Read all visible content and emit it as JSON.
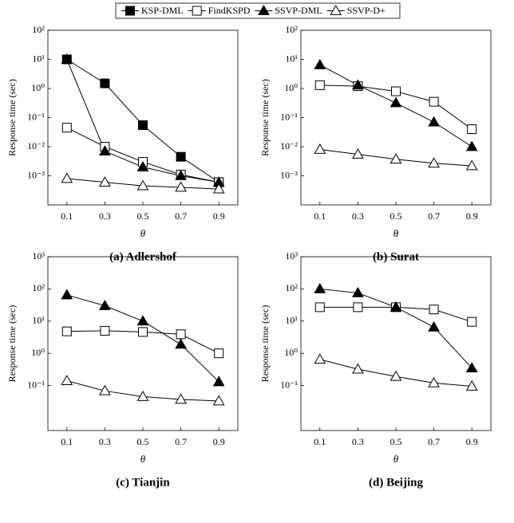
{
  "chart_data": [
    {
      "type": "line",
      "title": "(a) Adlershof",
      "xlabel": "θ",
      "ylabel": "Response time (sec)",
      "log_y": true,
      "x": [
        0.1,
        0.3,
        0.5,
        0.7,
        0.9
      ],
      "xlim": [
        0,
        1
      ],
      "xticks": [
        0.1,
        0.3,
        0.5,
        0.7,
        0.9
      ],
      "ylim": [
        0.0001,
        100
      ],
      "yticks": [
        {
          "value": 0.001,
          "label": "10⁻³"
        },
        {
          "value": 0.01,
          "label": "10⁻²"
        },
        {
          "value": 0.1,
          "label": "10⁻¹"
        },
        {
          "value": 1,
          "label": "10⁰"
        },
        {
          "value": 10,
          "label": "10¹"
        },
        {
          "value": 100,
          "label": "10²"
        }
      ],
      "series": [
        {
          "name": "KSP-DML",
          "color": "#000000",
          "marker": "square-filled",
          "values": [
            10,
            1.5,
            0.055,
            0.0045,
            0.0006
          ]
        },
        {
          "name": "FindKSPD",
          "color": "#000000",
          "marker": "square-open",
          "values": [
            0.045,
            0.01,
            0.003,
            0.0011,
            0.0006
          ]
        },
        {
          "name": "SSVP-DML",
          "color": "#000000",
          "marker": "triangle-filled",
          "values": [
            10,
            0.007,
            0.002,
            0.001,
            0.0006
          ]
        },
        {
          "name": "SSVP-D+",
          "color": "#000000",
          "marker": "triangle-open",
          "values": [
            0.0008,
            0.0006,
            0.00045,
            0.0004,
            0.00035
          ]
        }
      ]
    },
    {
      "type": "line",
      "title": "(b) Surat",
      "xlabel": "θ",
      "ylabel": "Response time (sec)",
      "log_y": true,
      "x": [
        0.1,
        0.3,
        0.5,
        0.7,
        0.9
      ],
      "xlim": [
        0,
        1
      ],
      "xticks": [
        0.1,
        0.3,
        0.5,
        0.7,
        0.9
      ],
      "ylim": [
        0.0001,
        100
      ],
      "yticks": [
        {
          "value": 0.001,
          "label": "10⁻³"
        },
        {
          "value": 0.01,
          "label": "10⁻²"
        },
        {
          "value": 0.1,
          "label": "10⁻¹"
        },
        {
          "value": 1,
          "label": "10⁰"
        },
        {
          "value": 10,
          "label": "10¹"
        },
        {
          "value": 100,
          "label": "10²"
        }
      ],
      "series": [
        {
          "name": "FindKSPD",
          "color": "#000000",
          "marker": "square-open",
          "values": [
            1.3,
            1.2,
            0.8,
            0.35,
            0.04
          ]
        },
        {
          "name": "SSVP-DML",
          "color": "#000000",
          "marker": "triangle-filled",
          "values": [
            6.5,
            1.3,
            0.32,
            0.07,
            0.01
          ]
        },
        {
          "name": "SSVP-D+",
          "color": "#000000",
          "marker": "triangle-open",
          "values": [
            0.008,
            0.0055,
            0.0037,
            0.0027,
            0.0022
          ]
        }
      ]
    },
    {
      "type": "line",
      "title": "(c) Tianjin",
      "xlabel": "θ",
      "ylabel": "Response time (sec)",
      "log_y": true,
      "x": [
        0.1,
        0.3,
        0.5,
        0.7,
        0.9
      ],
      "xlim": [
        0,
        1
      ],
      "xticks": [
        0.1,
        0.3,
        0.5,
        0.7,
        0.9
      ],
      "ylim": [
        0.004,
        1000
      ],
      "yticks": [
        {
          "value": 0.1,
          "label": "10⁻¹"
        },
        {
          "value": 1,
          "label": "10⁰"
        },
        {
          "value": 10,
          "label": "10¹"
        },
        {
          "value": 100,
          "label": "10²"
        },
        {
          "value": 1000,
          "label": "10³"
        }
      ],
      "series": [
        {
          "name": "FindKSPD",
          "color": "#000000",
          "marker": "square-open",
          "values": [
            4.8,
            5,
            4.6,
            3.9,
            1.0
          ]
        },
        {
          "name": "SSVP-DML",
          "color": "#000000",
          "marker": "triangle-filled",
          "values": [
            65,
            30,
            10,
            1.9,
            0.13
          ]
        },
        {
          "name": "SSVP-D+",
          "color": "#000000",
          "marker": "triangle-open",
          "values": [
            0.14,
            0.068,
            0.045,
            0.037,
            0.033
          ]
        }
      ]
    },
    {
      "type": "line",
      "title": "(d) Beijing",
      "xlabel": "θ",
      "ylabel": "Response time (sec)",
      "log_y": true,
      "x": [
        0.1,
        0.3,
        0.5,
        0.7,
        0.9
      ],
      "xlim": [
        0,
        1
      ],
      "xticks": [
        0.1,
        0.3,
        0.5,
        0.7,
        0.9
      ],
      "ylim": [
        0.004,
        1000
      ],
      "yticks": [
        {
          "value": 0.1,
          "label": "10⁻¹"
        },
        {
          "value": 1,
          "label": "10⁰"
        },
        {
          "value": 10,
          "label": "10¹"
        },
        {
          "value": 100,
          "label": "10²"
        },
        {
          "value": 1000,
          "label": "10³"
        }
      ],
      "series": [
        {
          "name": "FindKSPD",
          "color": "#000000",
          "marker": "square-open",
          "values": [
            27,
            27,
            27,
            23,
            9.5
          ]
        },
        {
          "name": "SSVP-DML",
          "color": "#000000",
          "marker": "triangle-filled",
          "values": [
            100,
            75,
            27,
            6.5,
            0.35
          ]
        },
        {
          "name": "SSVP-D+",
          "color": "#000000",
          "marker": "triangle-open",
          "values": [
            0.65,
            0.32,
            0.19,
            0.12,
            0.095
          ]
        }
      ]
    }
  ]
}
